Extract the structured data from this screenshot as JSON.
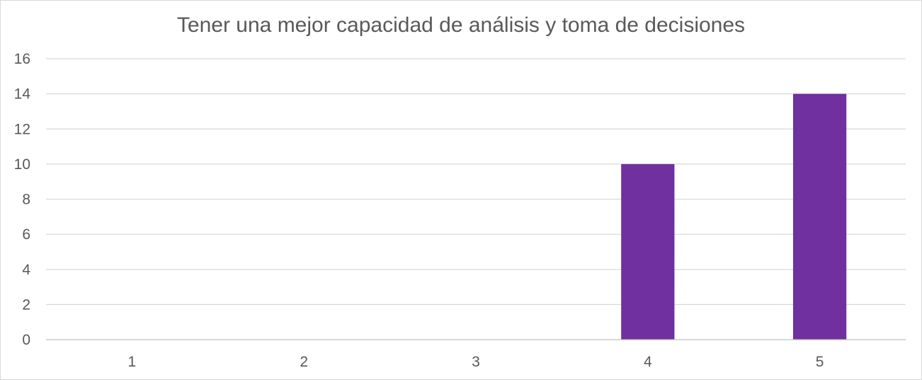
{
  "chart_data": {
    "type": "bar",
    "title": "Tener una mejor capacidad de análisis y toma de decisiones",
    "xlabel": "",
    "ylabel": "",
    "categories": [
      "1",
      "2",
      "3",
      "4",
      "5"
    ],
    "values": [
      0,
      0,
      0,
      10,
      14
    ],
    "ylim": [
      0,
      16
    ],
    "yticks": [
      0,
      2,
      4,
      6,
      8,
      10,
      12,
      14,
      16
    ],
    "grid": true,
    "legend": "none",
    "bar_color": "#7030a0"
  }
}
